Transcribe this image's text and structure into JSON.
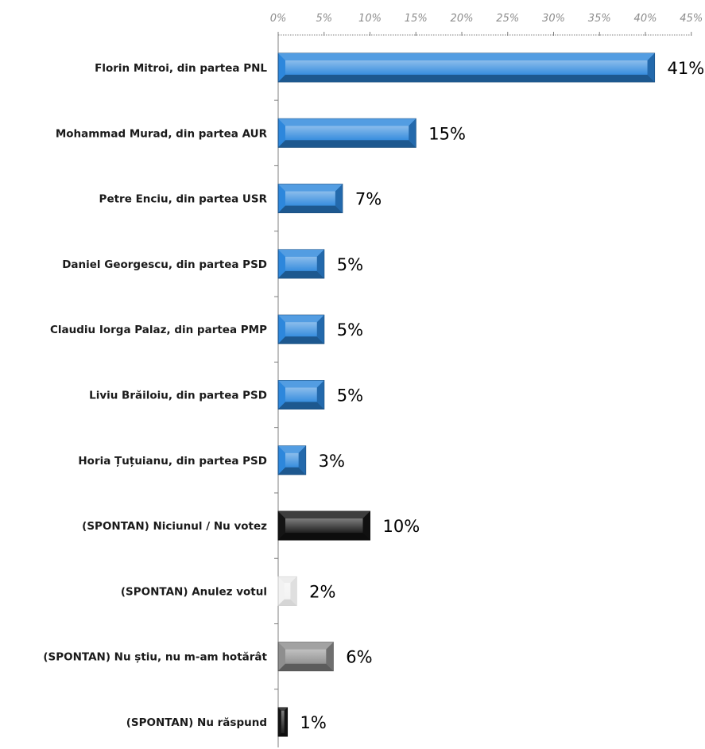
{
  "chart_data": {
    "type": "bar",
    "orientation": "horizontal",
    "title": "",
    "xlabel": "",
    "ylabel": "",
    "xlim": [
      0,
      45
    ],
    "x_ticks": [
      0,
      5,
      10,
      15,
      20,
      25,
      30,
      35,
      40,
      45
    ],
    "tick_labels": [
      "0%",
      "5%",
      "10%",
      "15%",
      "20%",
      "25%",
      "30%",
      "35%",
      "40%",
      "45%"
    ],
    "axis_position": "top",
    "grid": false,
    "legend": "none",
    "categories": [
      "Florin Mitroi, din partea PNL",
      "Mohammad Murad, din partea AUR",
      "Petre Enciu, din partea USR",
      "Daniel Georgescu, din partea PSD",
      "Claudiu Iorga Palaz, din partea PMP",
      "Liviu Brăiloiu, din partea PSD",
      "Horia Țuțuianu, din partea PSD",
      "(SPONTAN) Niciunul / Nu votez",
      "(SPONTAN) Anulez votul",
      "(SPONTAN) Nu știu, nu m-am hotărât",
      "(SPONTAN) Nu răspund"
    ],
    "values": [
      41,
      15,
      7,
      5,
      5,
      5,
      3,
      10,
      2,
      6,
      1
    ],
    "value_labels": [
      "41%",
      "15%",
      "7%",
      "5%",
      "5%",
      "5%",
      "3%",
      "10%",
      "2%",
      "6%",
      "1%"
    ],
    "bar_colors": [
      "#2d87dc",
      "#2d87dc",
      "#2d87dc",
      "#2d87dc",
      "#2d87dc",
      "#2d87dc",
      "#2d87dc",
      "#141414",
      "#f2f2f2",
      "#8e8e8e",
      "#141414"
    ]
  }
}
